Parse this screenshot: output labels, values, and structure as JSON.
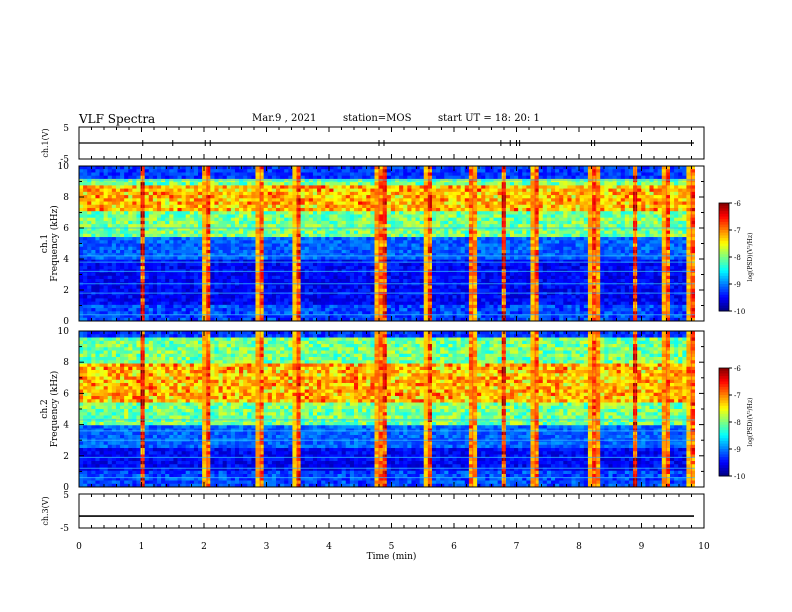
{
  "header": {
    "title": "VLF Spectra",
    "date": "Mar.9 , 2021",
    "station": "station=MOS",
    "start": "start UT = 18: 20: 1"
  },
  "chart_data": [
    {
      "type": "line",
      "name": "ch1-waveform",
      "ylabel": "ch.1(V)",
      "ylim": [
        -5,
        5
      ],
      "y_ticklabels": [
        "5",
        "-5"
      ],
      "baseline": 0,
      "spikes_min": [
        1.02,
        1.5,
        2.02,
        2.1,
        4.8,
        4.88,
        6.75,
        6.9,
        7.0,
        7.05,
        8.2,
        8.25,
        9.0,
        9.8
      ]
    },
    {
      "type": "heatmap",
      "name": "ch1-spectrogram",
      "ylabel": "ch.1\nFrequency (kHz)",
      "xlim": [
        0,
        10
      ],
      "ylim": [
        0,
        10
      ],
      "y_ticklabels": [
        "0",
        "2",
        "4",
        "6",
        "8",
        "10"
      ],
      "x_range_data_min": [
        0,
        9.85
      ],
      "band_khz": [
        5.5,
        9.2
      ],
      "strong_band_khz": [
        7.0,
        8.8
      ],
      "vertical_bursts_min": [
        1.02,
        2.05,
        2.9,
        3.5,
        4.8,
        4.88,
        5.6,
        6.3,
        6.8,
        7.3,
        8.22,
        8.27,
        8.9,
        9.4,
        9.8
      ],
      "horizontal_lines_khz": [
        0.4,
        1.8,
        2.4,
        3.2,
        3.8,
        4.2,
        6.0,
        9.1
      ],
      "colorbar": {
        "label": "log(PSD)(V²/Hz)",
        "ticks": [
          "-6",
          "-7",
          "-8",
          "-9",
          "-10"
        ],
        "min": -10,
        "max": -6
      }
    },
    {
      "type": "heatmap",
      "name": "ch2-spectrogram",
      "ylabel": "ch.2\nFrequency (kHz)",
      "xlim": [
        0,
        10
      ],
      "ylim": [
        0,
        10
      ],
      "y_ticklabels": [
        "0",
        "2",
        "4",
        "6",
        "8",
        "10"
      ],
      "x_range_data_min": [
        0,
        9.85
      ],
      "band_khz": [
        4.0,
        9.5
      ],
      "strong_band_khz": [
        5.5,
        8.0
      ],
      "vertical_bursts_min": [
        1.02,
        2.05,
        2.9,
        3.5,
        4.8,
        4.88,
        5.6,
        6.3,
        6.8,
        7.3,
        8.22,
        8.27,
        8.9,
        9.4,
        9.8
      ],
      "horizontal_lines_khz": [
        0.6,
        1.2,
        1.9,
        3.0,
        3.6,
        4.3
      ],
      "colorbar": {
        "label": "log(PSD)(V²/Hz)",
        "ticks": [
          "-6",
          "-7",
          "-8",
          "-9",
          "-10"
        ],
        "min": -10,
        "max": -6
      }
    },
    {
      "type": "line",
      "name": "ch3-waveform",
      "ylabel": "ch.3(V)",
      "ylim": [
        -5,
        5
      ],
      "y_ticklabels": [
        "5",
        "-5"
      ],
      "baseline": -1.5
    }
  ],
  "x_axis": {
    "label": "Time (min)",
    "ticks": [
      "0",
      "1",
      "2",
      "3",
      "4",
      "5",
      "6",
      "7",
      "8",
      "9",
      "10"
    ],
    "range": [
      0,
      10
    ]
  }
}
